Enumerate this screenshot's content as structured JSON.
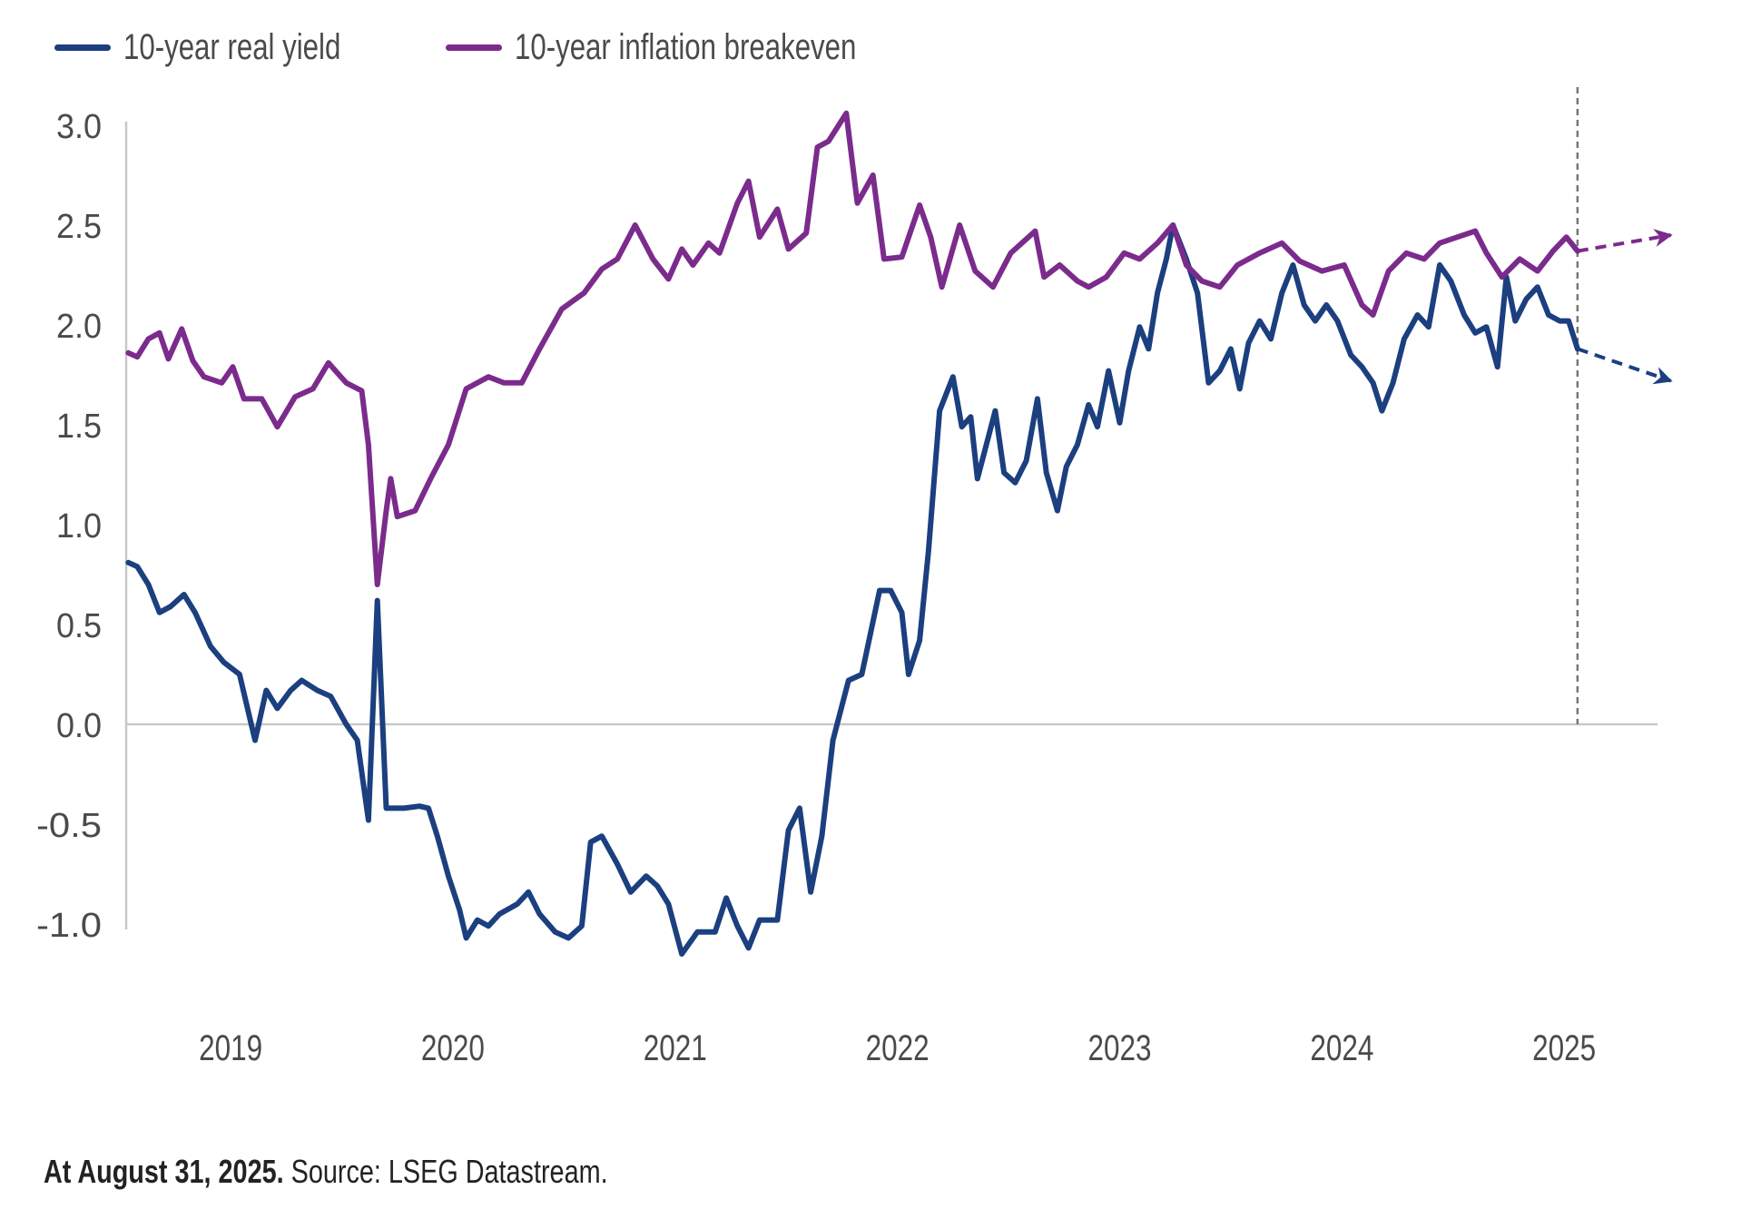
{
  "chart_data": {
    "type": "line",
    "title": "",
    "xlabel": "",
    "ylabel": "",
    "ylim": [
      -1.0,
      3.0
    ],
    "xlim": [
      2019.03,
      2025.92
    ],
    "yticks": [
      "3.0",
      "2.5",
      "2.0",
      "1.5",
      "1.0",
      "0.5",
      "0.0",
      "-0.5",
      "-1.0"
    ],
    "ytick_values": [
      3.0,
      2.5,
      2.0,
      1.5,
      1.0,
      0.5,
      0.0,
      -0.5,
      -1.0
    ],
    "xticks": [
      "2019",
      "2020",
      "2021",
      "2022",
      "2023",
      "2024",
      "2025"
    ],
    "xtick_values": [
      2019.5,
      2020.5,
      2021.5,
      2022.5,
      2023.5,
      2024.5,
      2025.5
    ],
    "grid": false,
    "legend_position": "top-left",
    "reference_line": {
      "type": "vertical-dashed",
      "x": 2025.56,
      "label": "At August 31, 2025"
    },
    "series": [
      {
        "name": "10-year real yield",
        "color": "#1b3f7f",
        "points": [
          [
            2019.04,
            0.81
          ],
          [
            2019.08,
            0.79
          ],
          [
            2019.13,
            0.7
          ],
          [
            2019.18,
            0.56
          ],
          [
            2019.23,
            0.59
          ],
          [
            2019.29,
            0.65
          ],
          [
            2019.34,
            0.56
          ],
          [
            2019.41,
            0.39
          ],
          [
            2019.47,
            0.31
          ],
          [
            2019.54,
            0.25
          ],
          [
            2019.58,
            0.06
          ],
          [
            2019.61,
            -0.08
          ],
          [
            2019.66,
            0.17
          ],
          [
            2019.71,
            0.08
          ],
          [
            2019.77,
            0.17
          ],
          [
            2019.82,
            0.22
          ],
          [
            2019.89,
            0.17
          ],
          [
            2019.95,
            0.14
          ],
          [
            2020.02,
            0.0
          ],
          [
            2020.07,
            -0.08
          ],
          [
            2020.12,
            -0.48
          ],
          [
            2020.16,
            0.62
          ],
          [
            2020.2,
            -0.42
          ],
          [
            2020.28,
            -0.42
          ],
          [
            2020.35,
            -0.41
          ],
          [
            2020.39,
            -0.42
          ],
          [
            2020.43,
            -0.56
          ],
          [
            2020.48,
            -0.76
          ],
          [
            2020.53,
            -0.93
          ],
          [
            2020.56,
            -1.07
          ],
          [
            2020.61,
            -0.98
          ],
          [
            2020.66,
            -1.01
          ],
          [
            2020.71,
            -0.95
          ],
          [
            2020.79,
            -0.9
          ],
          [
            2020.84,
            -0.84
          ],
          [
            2020.89,
            -0.95
          ],
          [
            2020.96,
            -1.04
          ],
          [
            2021.02,
            -1.07
          ],
          [
            2021.08,
            -1.01
          ],
          [
            2021.12,
            -0.59
          ],
          [
            2021.17,
            -0.56
          ],
          [
            2021.24,
            -0.7
          ],
          [
            2021.3,
            -0.84
          ],
          [
            2021.37,
            -0.76
          ],
          [
            2021.42,
            -0.81
          ],
          [
            2021.47,
            -0.9
          ],
          [
            2021.53,
            -1.15
          ],
          [
            2021.6,
            -1.04
          ],
          [
            2021.68,
            -1.04
          ],
          [
            2021.73,
            -0.87
          ],
          [
            2021.78,
            -1.01
          ],
          [
            2021.83,
            -1.12
          ],
          [
            2021.88,
            -0.98
          ],
          [
            2021.96,
            -0.98
          ],
          [
            2022.01,
            -0.53
          ],
          [
            2022.06,
            -0.42
          ],
          [
            2022.11,
            -0.84
          ],
          [
            2022.16,
            -0.56
          ],
          [
            2022.21,
            -0.08
          ],
          [
            2022.28,
            0.22
          ],
          [
            2022.34,
            0.25
          ],
          [
            2022.42,
            0.67
          ],
          [
            2022.47,
            0.67
          ],
          [
            2022.52,
            0.56
          ],
          [
            2022.55,
            0.25
          ],
          [
            2022.6,
            0.42
          ],
          [
            2022.64,
            0.87
          ],
          [
            2022.69,
            1.57
          ],
          [
            2022.75,
            1.74
          ],
          [
            2022.79,
            1.49
          ],
          [
            2022.83,
            1.54
          ],
          [
            2022.86,
            1.23
          ],
          [
            2022.9,
            1.4
          ],
          [
            2022.94,
            1.57
          ],
          [
            2022.98,
            1.26
          ],
          [
            2023.03,
            1.21
          ],
          [
            2023.08,
            1.32
          ],
          [
            2023.13,
            1.63
          ],
          [
            2023.17,
            1.26
          ],
          [
            2023.22,
            1.07
          ],
          [
            2023.26,
            1.29
          ],
          [
            2023.31,
            1.4
          ],
          [
            2023.36,
            1.6
          ],
          [
            2023.4,
            1.49
          ],
          [
            2023.45,
            1.77
          ],
          [
            2023.5,
            1.51
          ],
          [
            2023.54,
            1.77
          ],
          [
            2023.59,
            1.99
          ],
          [
            2023.63,
            1.88
          ],
          [
            2023.67,
            2.16
          ],
          [
            2023.71,
            2.33
          ],
          [
            2023.74,
            2.5
          ],
          [
            2023.8,
            2.33
          ],
          [
            2023.85,
            2.16
          ],
          [
            2023.9,
            1.71
          ],
          [
            2023.95,
            1.77
          ],
          [
            2024.0,
            1.88
          ],
          [
            2024.04,
            1.68
          ],
          [
            2024.08,
            1.91
          ],
          [
            2024.13,
            2.02
          ],
          [
            2024.18,
            1.93
          ],
          [
            2024.23,
            2.16
          ],
          [
            2024.28,
            2.3
          ],
          [
            2024.33,
            2.1
          ],
          [
            2024.38,
            2.02
          ],
          [
            2024.43,
            2.1
          ],
          [
            2024.48,
            2.02
          ],
          [
            2024.54,
            1.85
          ],
          [
            2024.59,
            1.79
          ],
          [
            2024.64,
            1.71
          ],
          [
            2024.68,
            1.57
          ],
          [
            2024.73,
            1.71
          ],
          [
            2024.78,
            1.93
          ],
          [
            2024.84,
            2.05
          ],
          [
            2024.89,
            1.99
          ],
          [
            2024.94,
            2.3
          ],
          [
            2024.99,
            2.22
          ],
          [
            2025.05,
            2.05
          ],
          [
            2025.1,
            1.96
          ],
          [
            2025.15,
            1.99
          ],
          [
            2025.2,
            1.79
          ],
          [
            2025.24,
            2.24
          ],
          [
            2025.28,
            2.02
          ],
          [
            2025.33,
            2.13
          ],
          [
            2025.38,
            2.19
          ],
          [
            2025.43,
            2.05
          ],
          [
            2025.48,
            2.02
          ],
          [
            2025.52,
            2.02
          ],
          [
            2025.56,
            1.88
          ]
        ],
        "projection": {
          "from": [
            2025.56,
            1.88
          ],
          "to": [
            2025.98,
            1.72
          ],
          "style": "dashed-arrow"
        }
      },
      {
        "name": "10-year inflation breakeven",
        "color": "#7b2b8c",
        "points": [
          [
            2019.04,
            1.86
          ],
          [
            2019.08,
            1.84
          ],
          [
            2019.13,
            1.93
          ],
          [
            2019.18,
            1.96
          ],
          [
            2019.22,
            1.83
          ],
          [
            2019.28,
            1.98
          ],
          [
            2019.33,
            1.82
          ],
          [
            2019.38,
            1.74
          ],
          [
            2019.46,
            1.71
          ],
          [
            2019.51,
            1.79
          ],
          [
            2019.56,
            1.63
          ],
          [
            2019.64,
            1.63
          ],
          [
            2019.71,
            1.49
          ],
          [
            2019.79,
            1.64
          ],
          [
            2019.87,
            1.68
          ],
          [
            2019.94,
            1.81
          ],
          [
            2020.02,
            1.71
          ],
          [
            2020.09,
            1.67
          ],
          [
            2020.12,
            1.4
          ],
          [
            2020.16,
            0.7
          ],
          [
            2020.2,
            1.07
          ],
          [
            2020.22,
            1.23
          ],
          [
            2020.25,
            1.04
          ],
          [
            2020.33,
            1.07
          ],
          [
            2020.4,
            1.23
          ],
          [
            2020.48,
            1.4
          ],
          [
            2020.56,
            1.68
          ],
          [
            2020.66,
            1.74
          ],
          [
            2020.73,
            1.71
          ],
          [
            2020.81,
            1.71
          ],
          [
            2020.89,
            1.88
          ],
          [
            2020.99,
            2.08
          ],
          [
            2021.09,
            2.16
          ],
          [
            2021.17,
            2.28
          ],
          [
            2021.24,
            2.33
          ],
          [
            2021.32,
            2.5
          ],
          [
            2021.4,
            2.33
          ],
          [
            2021.47,
            2.23
          ],
          [
            2021.53,
            2.38
          ],
          [
            2021.58,
            2.3
          ],
          [
            2021.65,
            2.41
          ],
          [
            2021.7,
            2.36
          ],
          [
            2021.78,
            2.61
          ],
          [
            2021.83,
            2.72
          ],
          [
            2021.88,
            2.44
          ],
          [
            2021.96,
            2.58
          ],
          [
            2022.01,
            2.38
          ],
          [
            2022.09,
            2.46
          ],
          [
            2022.14,
            2.89
          ],
          [
            2022.19,
            2.92
          ],
          [
            2022.27,
            3.06
          ],
          [
            2022.32,
            2.61
          ],
          [
            2022.39,
            2.75
          ],
          [
            2022.44,
            2.33
          ],
          [
            2022.52,
            2.34
          ],
          [
            2022.6,
            2.6
          ],
          [
            2022.65,
            2.44
          ],
          [
            2022.7,
            2.19
          ],
          [
            2022.78,
            2.5
          ],
          [
            2022.85,
            2.27
          ],
          [
            2022.93,
            2.19
          ],
          [
            2023.01,
            2.36
          ],
          [
            2023.12,
            2.47
          ],
          [
            2023.16,
            2.24
          ],
          [
            2023.23,
            2.3
          ],
          [
            2023.31,
            2.22
          ],
          [
            2023.36,
            2.19
          ],
          [
            2023.44,
            2.24
          ],
          [
            2023.52,
            2.36
          ],
          [
            2023.59,
            2.33
          ],
          [
            2023.67,
            2.41
          ],
          [
            2023.74,
            2.5
          ],
          [
            2023.8,
            2.3
          ],
          [
            2023.87,
            2.22
          ],
          [
            2023.95,
            2.19
          ],
          [
            2024.03,
            2.3
          ],
          [
            2024.13,
            2.36
          ],
          [
            2024.23,
            2.41
          ],
          [
            2024.31,
            2.32
          ],
          [
            2024.41,
            2.27
          ],
          [
            2024.51,
            2.3
          ],
          [
            2024.59,
            2.1
          ],
          [
            2024.64,
            2.05
          ],
          [
            2024.71,
            2.27
          ],
          [
            2024.79,
            2.36
          ],
          [
            2024.87,
            2.33
          ],
          [
            2024.94,
            2.41
          ],
          [
            2025.02,
            2.44
          ],
          [
            2025.1,
            2.47
          ],
          [
            2025.15,
            2.36
          ],
          [
            2025.22,
            2.24
          ],
          [
            2025.3,
            2.33
          ],
          [
            2025.38,
            2.27
          ],
          [
            2025.45,
            2.37
          ],
          [
            2025.51,
            2.44
          ],
          [
            2025.56,
            2.37
          ]
        ],
        "projection": {
          "from": [
            2025.56,
            2.37
          ],
          "to": [
            2025.98,
            2.45
          ],
          "style": "dashed-arrow"
        }
      }
    ]
  },
  "legend": {
    "items": [
      {
        "label": "10-year real yield",
        "color": "#1b3f7f"
      },
      {
        "label": "10-year inflation breakeven",
        "color": "#7b2b8c"
      }
    ]
  },
  "footer": {
    "date_bold": "At August 31, 2025.",
    "source": " Source: LSEG Datastream."
  }
}
